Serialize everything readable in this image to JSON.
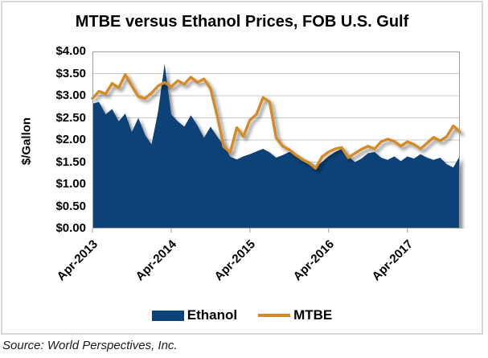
{
  "title": "MTBE versus Ethanol Prices, FOB U.S. Gulf",
  "source_note": "Source: World Perspectives, Inc.",
  "legend": {
    "ethanol_label": "Ethanol",
    "mtbe_label": "MTBE"
  },
  "colors": {
    "ethanol": "#0B4279",
    "mtbe": "#D48A28",
    "grid": "#c8c8c8",
    "axis": "#9e9e9e",
    "figure_border": "#d8d8d8",
    "text": "#000000"
  },
  "chart_data": {
    "type": "area",
    "title": "MTBE versus Ethanol Prices, FOB U.S. Gulf",
    "xlabel": "",
    "ylabel": "$/Gallon",
    "ylim": [
      0,
      4
    ],
    "ytick_step": 0.5,
    "ytick_labels": [
      "$4.00",
      "$3.50",
      "$3.00",
      "$2.50",
      "$2.00",
      "$1.50",
      "$1.00",
      "$0.50",
      "$0.00"
    ],
    "x_unit": "month",
    "x_start": "Apr-2013",
    "x_end": "Dec-2017",
    "xtick_labels": [
      "Apr-2013",
      "Apr-2014",
      "Apr-2015",
      "Apr-2016",
      "Apr-2017"
    ],
    "xtick_month_index": [
      0,
      12,
      24,
      36,
      48
    ],
    "grid": true,
    "legend_position": "bottom",
    "series": [
      {
        "name": "Ethanol",
        "type": "area",
        "color": "#0B4279",
        "values": [
          2.82,
          2.86,
          2.58,
          2.7,
          2.42,
          2.6,
          2.18,
          2.5,
          2.12,
          1.9,
          2.64,
          3.72,
          2.58,
          2.42,
          2.3,
          2.56,
          2.33,
          2.05,
          2.3,
          2.08,
          1.88,
          1.62,
          1.56,
          1.63,
          1.68,
          1.74,
          1.8,
          1.72,
          1.6,
          1.66,
          1.73,
          1.66,
          1.58,
          1.52,
          1.4,
          1.5,
          1.63,
          1.73,
          1.8,
          1.62,
          1.5,
          1.58,
          1.7,
          1.73,
          1.6,
          1.55,
          1.63,
          1.52,
          1.63,
          1.58,
          1.68,
          1.6,
          1.55,
          1.6,
          1.45,
          1.38,
          1.64
        ]
      },
      {
        "name": "MTBE",
        "type": "line",
        "color": "#D48A28",
        "values": [
          2.94,
          3.1,
          3.04,
          3.28,
          3.18,
          3.48,
          3.22,
          2.98,
          2.94,
          3.06,
          3.22,
          3.3,
          3.2,
          3.34,
          3.26,
          3.42,
          3.3,
          3.38,
          3.16,
          2.55,
          1.85,
          1.72,
          2.28,
          2.08,
          2.45,
          2.58,
          2.96,
          2.86,
          2.05,
          1.86,
          1.78,
          1.66,
          1.56,
          1.48,
          1.36,
          1.62,
          1.73,
          1.8,
          1.83,
          1.6,
          1.7,
          1.79,
          1.86,
          1.8,
          1.96,
          2.02,
          1.97,
          1.86,
          1.96,
          1.9,
          1.8,
          1.93,
          2.06,
          1.98,
          2.08,
          2.32,
          2.18
        ]
      }
    ]
  }
}
